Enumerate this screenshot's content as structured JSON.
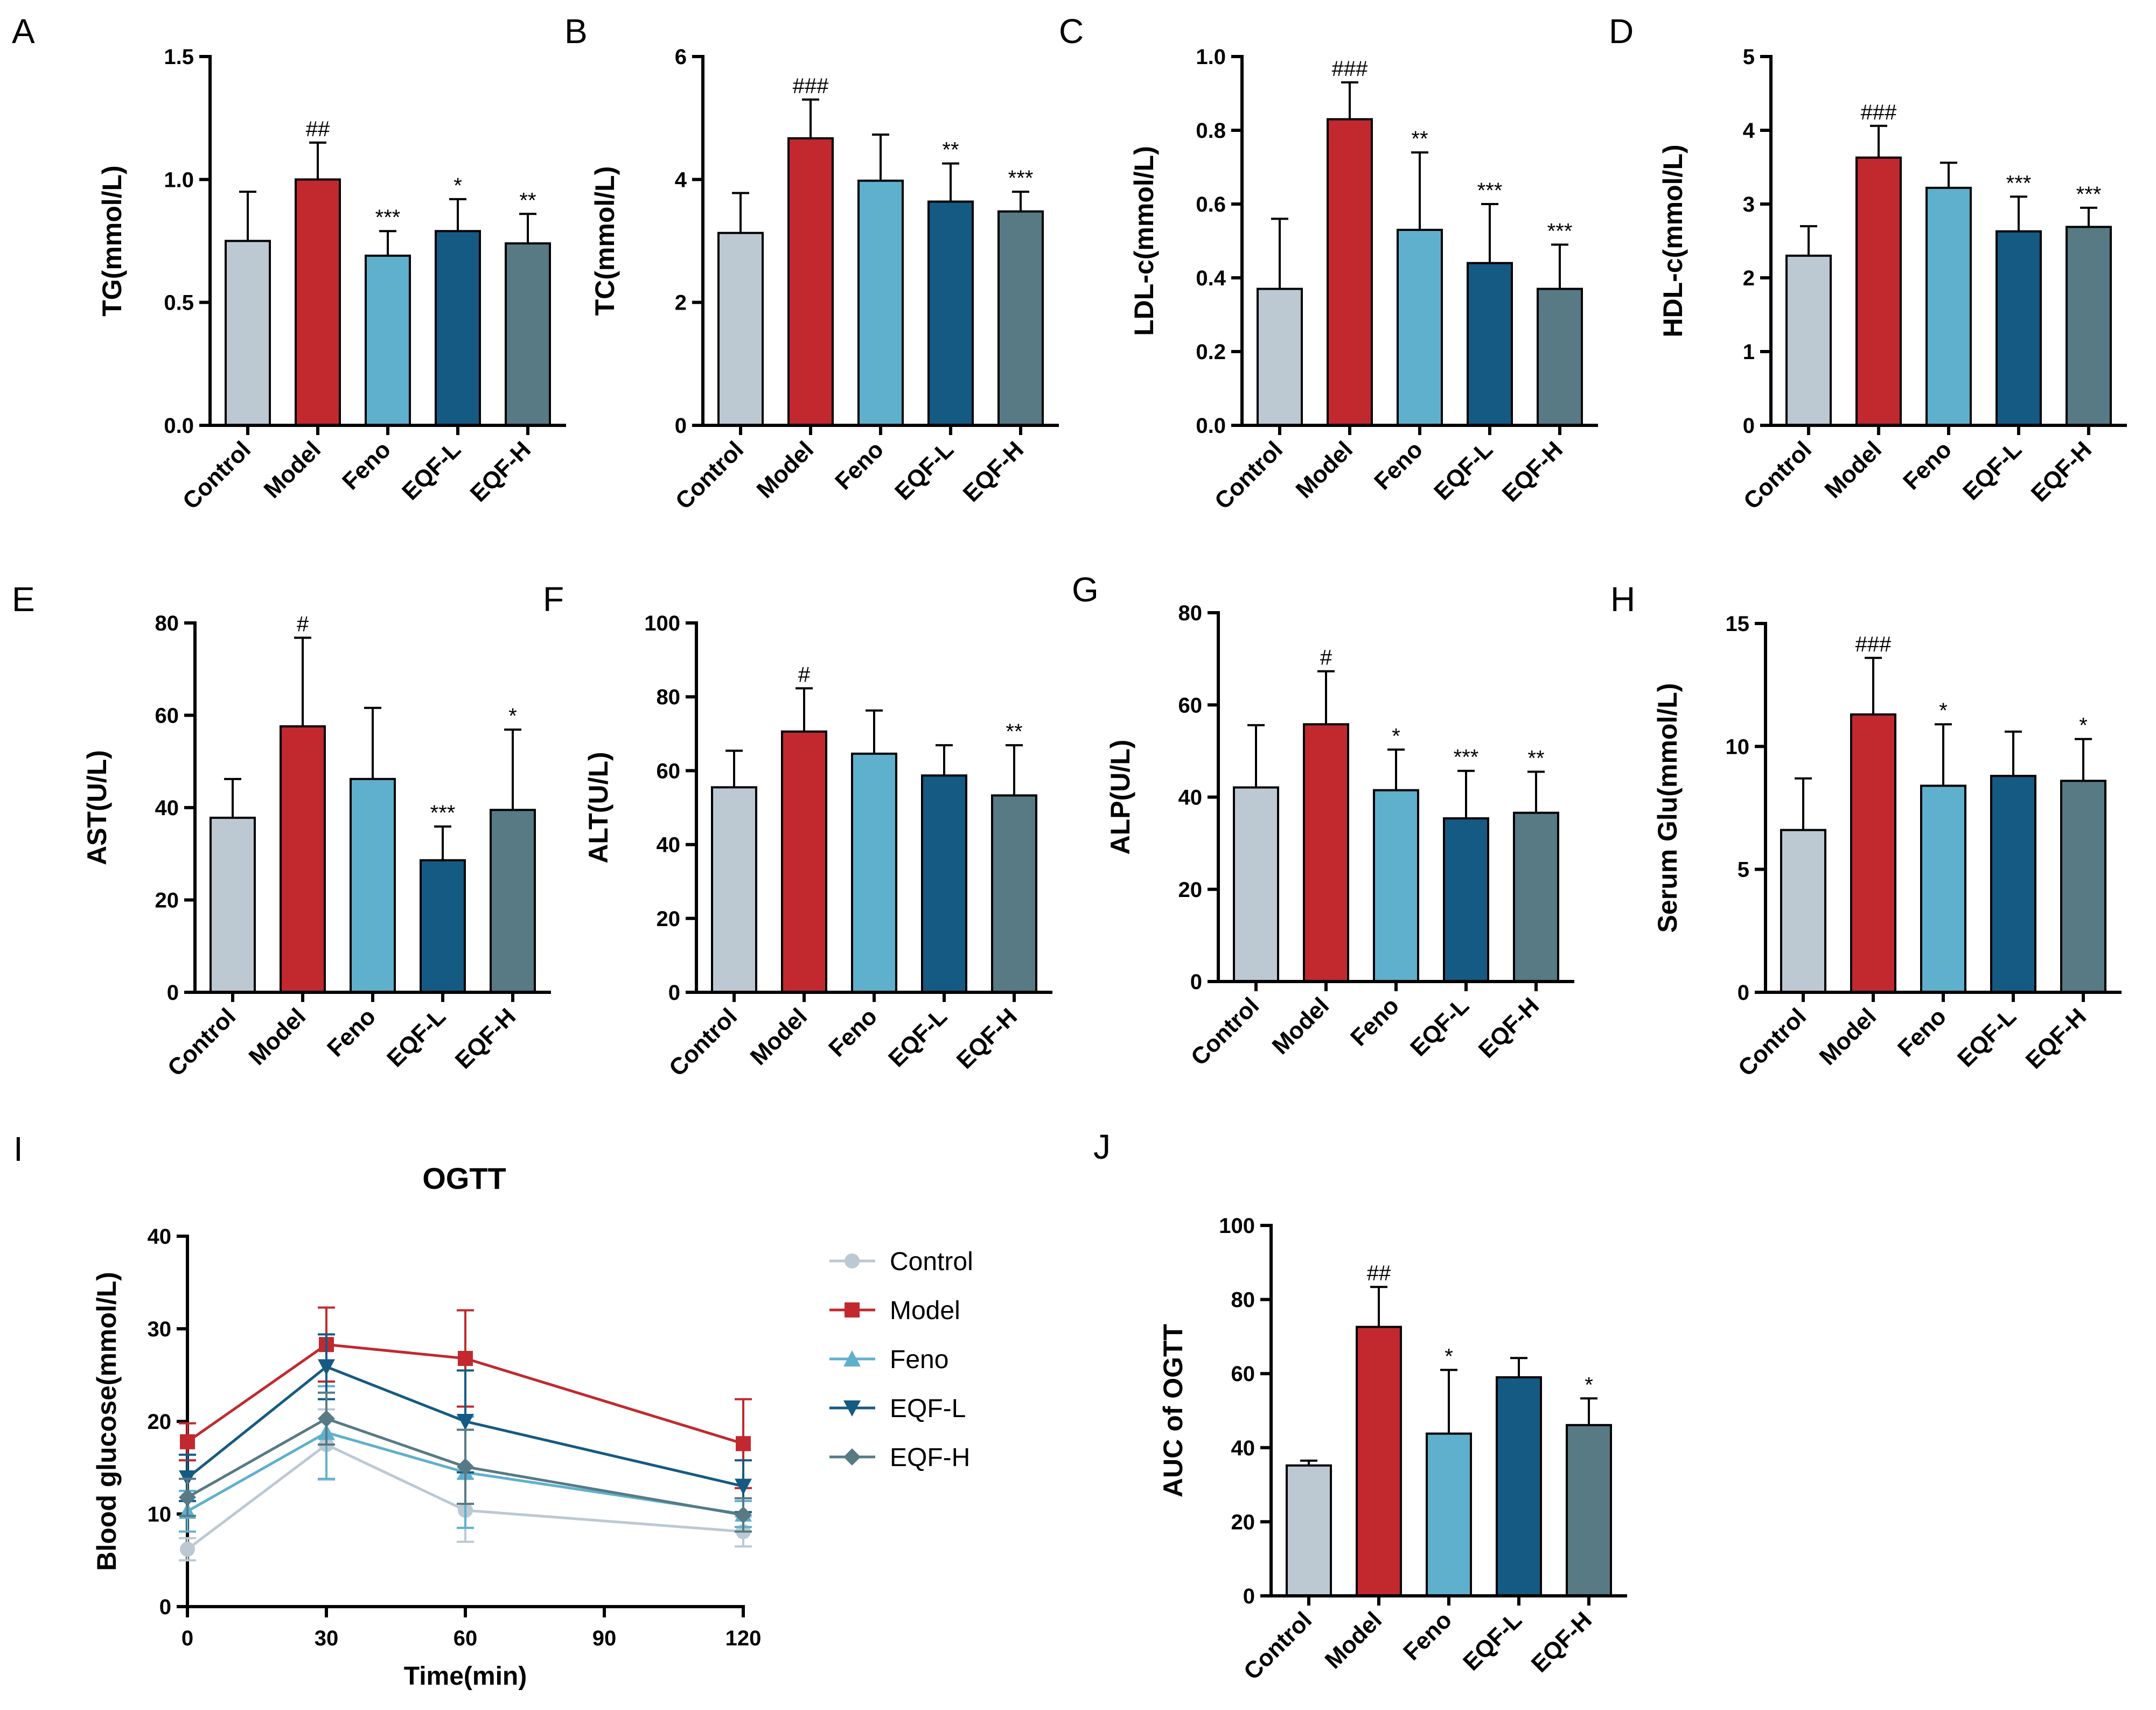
{
  "colors": {
    "Control": "#bcc9d3",
    "Model": "#c1292f",
    "Feno": "#5fb0cc",
    "EQF-L": "#155a83",
    "EQF-H": "#577a84"
  },
  "chart_data": [
    {
      "panel": "A",
      "type": "bar",
      "categories": [
        "Control",
        "Model",
        "Feno",
        "EQF-L",
        "EQF-H"
      ],
      "values": [
        0.75,
        1.0,
        0.69,
        0.79,
        0.74
      ],
      "errors": [
        0.2,
        0.15,
        0.1,
        0.13,
        0.12
      ],
      "sig": [
        "",
        "##",
        "***",
        "*",
        "**"
      ],
      "ylabel": "TG(mmol/L)",
      "ylim": [
        0,
        1.5
      ],
      "yticks": [
        0,
        0.5,
        1.0,
        1.5
      ],
      "ytick_labels": [
        "0.0",
        "0.5",
        "1.0",
        "1.5"
      ]
    },
    {
      "panel": "B",
      "type": "bar",
      "categories": [
        "Control",
        "Model",
        "Feno",
        "EQF-L",
        "EQF-H"
      ],
      "values": [
        3.13,
        4.67,
        3.98,
        3.64,
        3.48
      ],
      "errors": [
        0.65,
        0.63,
        0.75,
        0.62,
        0.32
      ],
      "sig": [
        "",
        "###",
        "",
        "**",
        "***"
      ],
      "ylabel": "TC(mmol/L)",
      "ylim": [
        0,
        6
      ],
      "yticks": [
        0,
        2,
        4,
        6
      ],
      "ytick_labels": [
        "0",
        "2",
        "4",
        "6"
      ]
    },
    {
      "panel": "C",
      "type": "bar",
      "categories": [
        "Control",
        "Model",
        "Feno",
        "EQF-L",
        "EQF-H"
      ],
      "values": [
        0.37,
        0.83,
        0.53,
        0.44,
        0.37
      ],
      "errors": [
        0.19,
        0.1,
        0.21,
        0.16,
        0.12
      ],
      "sig": [
        "",
        "###",
        "**",
        "***",
        "***"
      ],
      "ylabel": "LDL-c(mmol/L)",
      "ylim": [
        0,
        1.0
      ],
      "yticks": [
        0,
        0.2,
        0.4,
        0.6,
        0.8,
        1.0
      ],
      "ytick_labels": [
        "0.0",
        "0.2",
        "0.4",
        "0.6",
        "0.8",
        "1.0"
      ]
    },
    {
      "panel": "D",
      "type": "bar",
      "categories": [
        "Control",
        "Model",
        "Feno",
        "EQF-L",
        "EQF-H"
      ],
      "values": [
        2.3,
        3.63,
        3.22,
        2.63,
        2.69
      ],
      "errors": [
        0.4,
        0.43,
        0.34,
        0.47,
        0.26
      ],
      "sig": [
        "",
        "###",
        "",
        "***",
        "***"
      ],
      "ylabel": "HDL-c(mmol/L)",
      "ylim": [
        0,
        5
      ],
      "yticks": [
        0,
        1,
        2,
        3,
        4,
        5
      ],
      "ytick_labels": [
        "0",
        "1",
        "2",
        "3",
        "4",
        "5"
      ]
    },
    {
      "panel": "E",
      "type": "bar",
      "categories": [
        "Control",
        "Model",
        "Feno",
        "EQF-L",
        "EQF-H"
      ],
      "values": [
        37.8,
        57.6,
        46.2,
        28.6,
        39.5
      ],
      "errors": [
        8.4,
        19.2,
        15.4,
        7.3,
        17.4
      ],
      "sig": [
        "",
        "#",
        "",
        "***",
        "*"
      ],
      "ylabel": "AST(U/L)",
      "ylim": [
        0,
        80
      ],
      "yticks": [
        0,
        20,
        40,
        60,
        80
      ],
      "ytick_labels": [
        "0",
        "20",
        "40",
        "60",
        "80"
      ]
    },
    {
      "panel": "F",
      "type": "bar",
      "categories": [
        "Control",
        "Model",
        "Feno",
        "EQF-L",
        "EQF-H"
      ],
      "values": [
        55.5,
        70.6,
        64.6,
        58.7,
        53.3
      ],
      "errors": [
        9.9,
        11.7,
        11.7,
        8.2,
        13.6
      ],
      "sig": [
        "",
        "#",
        "",
        "",
        "**"
      ],
      "ylabel": "ALT(U/L)",
      "ylim": [
        0,
        100
      ],
      "yticks": [
        0,
        20,
        40,
        60,
        80,
        100
      ],
      "ytick_labels": [
        "0",
        "20",
        "40",
        "60",
        "80",
        "100"
      ]
    },
    {
      "panel": "G",
      "type": "bar",
      "categories": [
        "Control",
        "Model",
        "Feno",
        "EQF-L",
        "EQF-H"
      ],
      "values": [
        42.1,
        55.8,
        41.5,
        35.4,
        36.6
      ],
      "errors": [
        13.5,
        11.5,
        8.8,
        10.3,
        8.9
      ],
      "sig": [
        "",
        "#",
        "*",
        "***",
        "**"
      ],
      "ylabel": "ALP(U/L)",
      "ylim": [
        0,
        80
      ],
      "yticks": [
        0,
        20,
        40,
        60,
        80
      ],
      "ytick_labels": [
        "0",
        "20",
        "40",
        "60",
        "80"
      ]
    },
    {
      "panel": "H",
      "type": "bar",
      "categories": [
        "Control",
        "Model",
        "Feno",
        "EQF-L",
        "EQF-H"
      ],
      "values": [
        6.6,
        11.3,
        8.4,
        8.8,
        8.6
      ],
      "errors": [
        2.1,
        2.3,
        2.5,
        1.8,
        1.7
      ],
      "sig": [
        "",
        "###",
        "*",
        "",
        "*"
      ],
      "ylabel": "Serum Glu(mmol/L)",
      "ylim": [
        0,
        15
      ],
      "yticks": [
        0,
        5,
        10,
        15
      ],
      "ytick_labels": [
        "0",
        "5",
        "10",
        "15"
      ]
    },
    {
      "panel": "I",
      "type": "line",
      "title": "OGTT",
      "x": [
        0,
        30,
        60,
        120
      ],
      "xlabel": "Time(min)",
      "ylabel": "Blood glucose(mmol/L)",
      "xlim": [
        0,
        120
      ],
      "ylim": [
        0,
        40
      ],
      "xticks": [
        0,
        30,
        60,
        90,
        120
      ],
      "xtick_labels": [
        "0",
        "30",
        "60",
        "90",
        "120"
      ],
      "yticks": [
        0,
        10,
        20,
        30,
        40
      ],
      "ytick_labels": [
        "0",
        "10",
        "20",
        "30",
        "40"
      ],
      "legend_position": "right",
      "series": [
        {
          "name": "Control",
          "marker": "circle",
          "values": [
            6.2,
            17.5,
            10.4,
            8.1
          ],
          "errors": [
            1.2,
            3.8,
            3.4,
            1.6
          ]
        },
        {
          "name": "Model",
          "marker": "square",
          "values": [
            17.8,
            28.3,
            26.8,
            17.6
          ],
          "errors": [
            2.0,
            4.0,
            5.2,
            4.8
          ]
        },
        {
          "name": "Feno",
          "marker": "triangle-up",
          "values": [
            10.3,
            18.8,
            14.5,
            10.0
          ],
          "errors": [
            2.2,
            5.0,
            6.0,
            1.4
          ]
        },
        {
          "name": "EQF-L",
          "marker": "triangle-down",
          "values": [
            13.9,
            25.9,
            20.0,
            13.0
          ],
          "errors": [
            2.5,
            3.5,
            5.5,
            2.8
          ]
        },
        {
          "name": "EQF-H",
          "marker": "diamond",
          "values": [
            11.8,
            20.3,
            15.1,
            9.9
          ],
          "errors": [
            2.0,
            2.8,
            4.0,
            1.8
          ]
        }
      ]
    },
    {
      "panel": "J",
      "type": "bar",
      "categories": [
        "Control",
        "Model",
        "Feno",
        "EQF-L",
        "EQF-H"
      ],
      "values": [
        35.2,
        72.6,
        43.8,
        59.0,
        46.1
      ],
      "errors": [
        1.3,
        10.8,
        17.2,
        5.2,
        7.2
      ],
      "sig": [
        "",
        "##",
        "*",
        "",
        "*"
      ],
      "ylabel": "AUC of OGTT",
      "ylim": [
        0,
        100
      ],
      "yticks": [
        0,
        20,
        40,
        60,
        80,
        100
      ],
      "ytick_labels": [
        "0",
        "20",
        "40",
        "60",
        "80",
        "100"
      ]
    }
  ]
}
